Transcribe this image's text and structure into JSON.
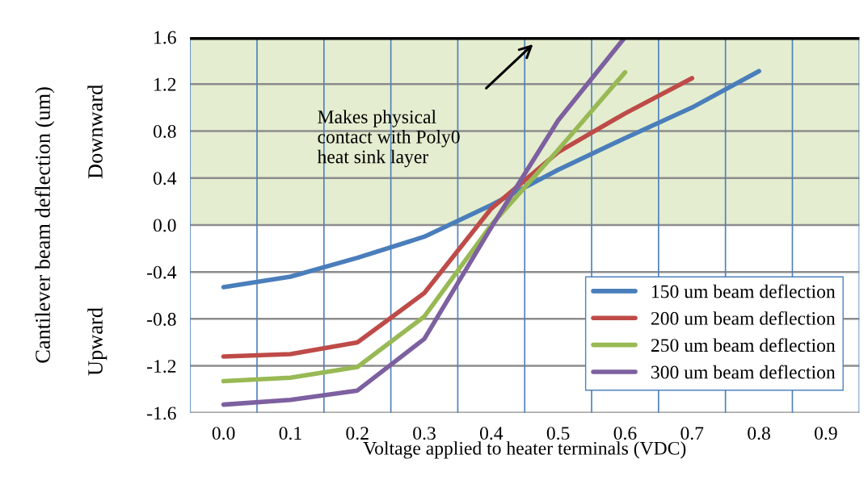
{
  "chart_data": {
    "type": "line",
    "xlabel": "Voltage applied to heater terminals (VDC)",
    "ylabel": "Cantilever beam deflection (um)",
    "categories": [
      "0.0",
      "0.1",
      "0.2",
      "0.3",
      "0.4",
      "0.5",
      "0.6",
      "0.7",
      "0.8",
      "0.9"
    ],
    "series": [
      {
        "name": "150 um beam deflection",
        "color": "#4a7ebb",
        "values": [
          -0.53,
          -0.44,
          -0.28,
          -0.1,
          0.17,
          0.47,
          0.74,
          1.0,
          1.31,
          null
        ]
      },
      {
        "name": "200 um beam deflection",
        "color": "#be4b48",
        "values": [
          -1.12,
          -1.1,
          -1.0,
          -0.58,
          0.14,
          0.62,
          0.95,
          1.25,
          null,
          null
        ]
      },
      {
        "name": "250 um beam deflection",
        "color": "#98b954",
        "values": [
          -1.33,
          -1.3,
          -1.21,
          -0.78,
          0.0,
          0.64,
          1.3,
          null,
          null,
          null
        ]
      },
      {
        "name": "300 um beam deflection",
        "color": "#7d60a0",
        "values": [
          -1.53,
          -1.49,
          -1.41,
          -0.97,
          -0.02,
          0.89,
          1.6,
          null,
          null,
          null
        ]
      }
    ],
    "ylim": [
      -1.6,
      1.6
    ],
    "yticks": [
      {
        "value": -1.6,
        "label": "-1.6"
      },
      {
        "value": -1.2,
        "label": "-1.2"
      },
      {
        "value": -0.8,
        "label": "-0.8"
      },
      {
        "value": -0.4,
        "label": "-0.4"
      },
      {
        "value": 0,
        "label": "0.0"
      },
      {
        "value": 0.4,
        "label": "0.4"
      },
      {
        "value": 0.8,
        "label": "0.8"
      },
      {
        "value": 1.2,
        "label": "1.2"
      },
      {
        "value": 1.6,
        "label": "1.6"
      }
    ],
    "ref_lines": [
      {
        "axis": "y",
        "value": 1.6,
        "color": "#000000"
      }
    ],
    "bands": [
      {
        "axis": "y",
        "from": 0,
        "to": 1.6,
        "color": "#e4edcf"
      }
    ],
    "annotations": [
      "Makes physical\ncontact with Poly0\nheat sink layer",
      "Downward",
      "Upward"
    ],
    "grid": true,
    "legend": "bottom right",
    "line_style": "solid",
    "marker": "none"
  }
}
